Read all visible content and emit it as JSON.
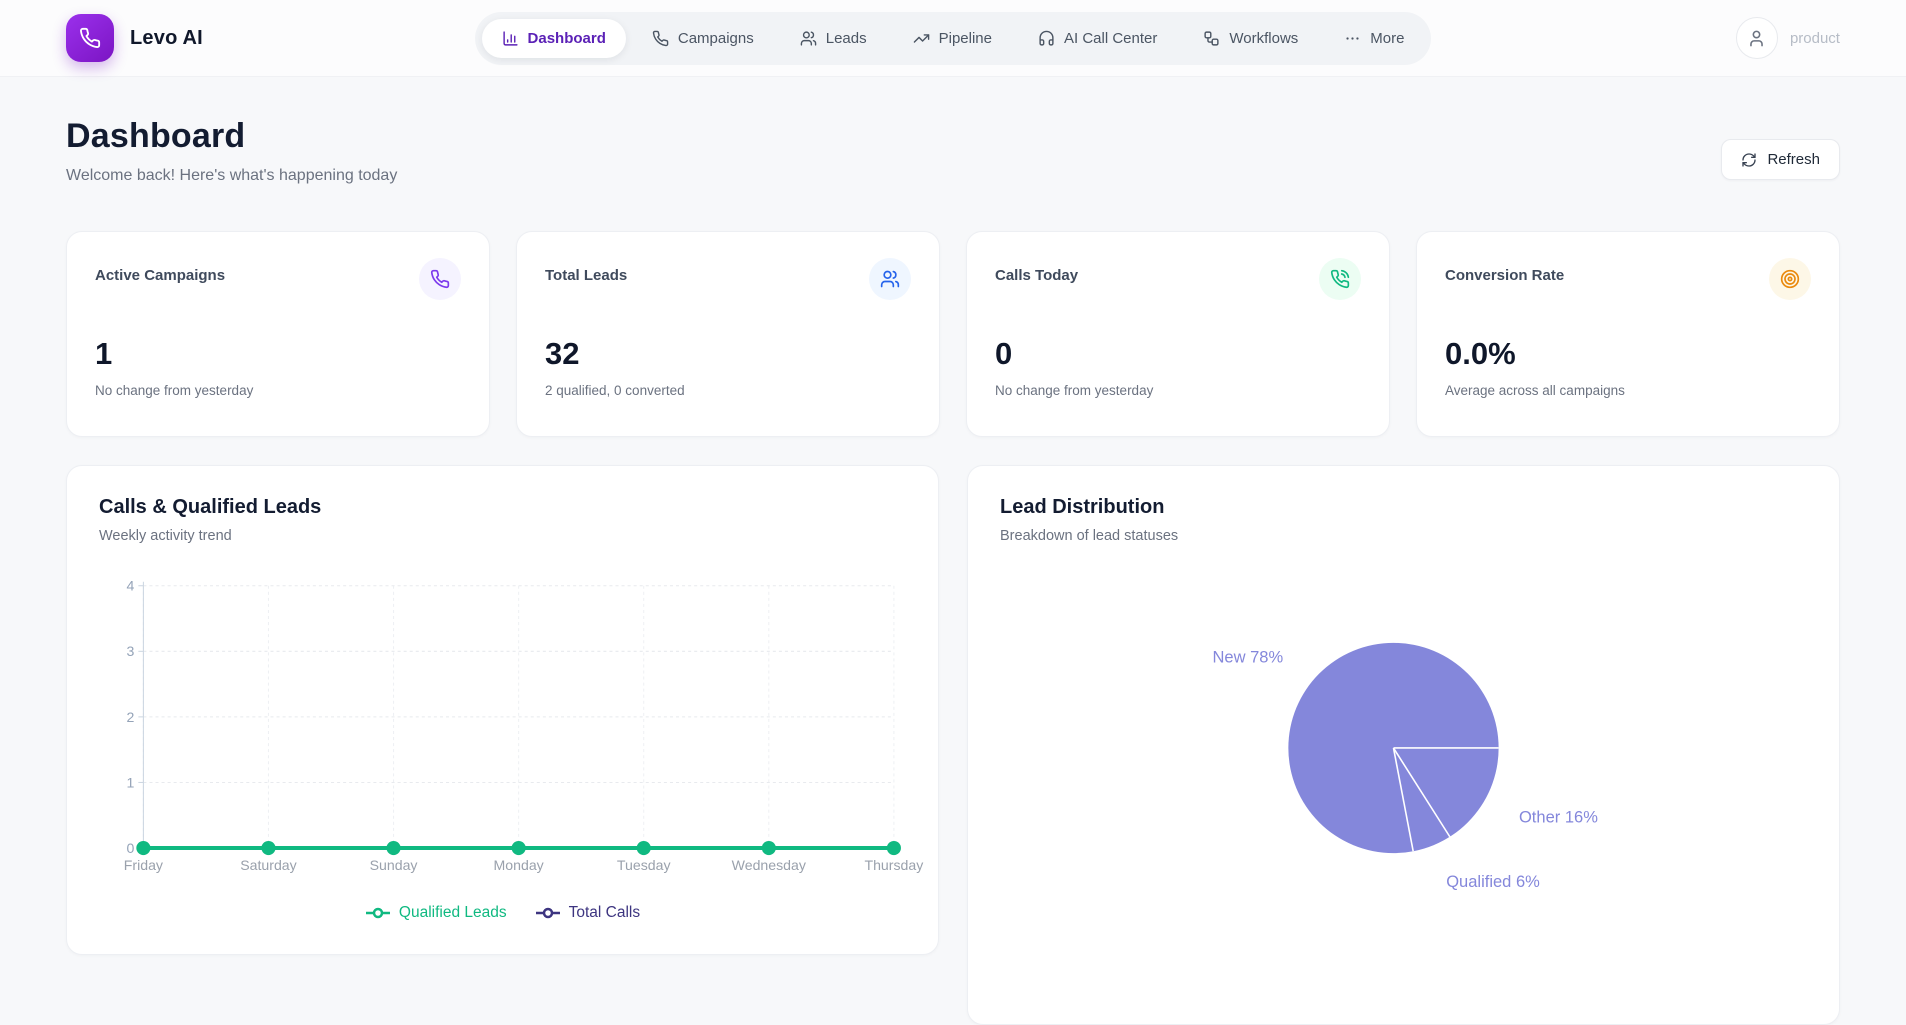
{
  "brand": {
    "name": "Levo AI",
    "logo_icon": "phone-icon"
  },
  "nav": {
    "items": [
      {
        "label": "Dashboard",
        "icon": "chart-column-icon",
        "active": true
      },
      {
        "label": "Campaigns",
        "icon": "phone-icon",
        "active": false
      },
      {
        "label": "Leads",
        "icon": "users-icon",
        "active": false
      },
      {
        "label": "Pipeline",
        "icon": "trending-up-icon",
        "active": false
      },
      {
        "label": "AI Call Center",
        "icon": "headphones-icon",
        "active": false
      },
      {
        "label": "Workflows",
        "icon": "workflow-icon",
        "active": false
      },
      {
        "label": "More",
        "icon": "ellipsis-icon",
        "active": false
      }
    ]
  },
  "user": {
    "name": "product",
    "icon": "user-icon"
  },
  "page": {
    "title": "Dashboard",
    "subtitle": "Welcome back! Here's what's happening today",
    "refresh_label": "Refresh"
  },
  "theme": {
    "accent_purple": "#5b21b6",
    "background": "#f7f8fa",
    "card_border": "#edeff3"
  },
  "stats": [
    {
      "title": "Active Campaigns",
      "value": "1",
      "subtitle": "No change from yesterday",
      "icon": "phone-icon",
      "icon_color": "#7c3aed",
      "chip_bg": "#f5f3ff"
    },
    {
      "title": "Total Leads",
      "value": "32",
      "subtitle": "2 qualified, 0 converted",
      "icon": "users-icon",
      "icon_color": "#2563eb",
      "chip_bg": "#eff6ff"
    },
    {
      "title": "Calls Today",
      "value": "0",
      "subtitle": "No change from yesterday",
      "icon": "phone-call-icon",
      "icon_color": "#10b981",
      "chip_bg": "#ecfdf3"
    },
    {
      "title": "Conversion Rate",
      "value": "0.0%",
      "subtitle": "Average across all campaigns",
      "icon": "target-icon",
      "icon_color": "#ea8a0e",
      "chip_bg": "#fdf7e7"
    }
  ],
  "chart_data": [
    {
      "type": "line",
      "title": "Calls & Qualified Leads",
      "subtitle": "Weekly activity trend",
      "categories": [
        "Friday",
        "Saturday",
        "Sunday",
        "Monday",
        "Tuesday",
        "Wednesday",
        "Thursday"
      ],
      "series": [
        {
          "name": "Qualified Leads",
          "color": "#10b981",
          "values": [
            0,
            0,
            0,
            0,
            0,
            0,
            0
          ]
        },
        {
          "name": "Total Calls",
          "color": "#3d3580",
          "values": [
            0,
            0,
            0,
            0,
            0,
            0,
            0
          ]
        }
      ],
      "ylim": [
        0,
        4
      ],
      "yticks": [
        0,
        1,
        2,
        3,
        4
      ],
      "grid": true,
      "legend_position": "bottom"
    },
    {
      "type": "pie",
      "title": "Lead Distribution",
      "subtitle": "Breakdown of lead statuses",
      "slices": [
        {
          "label": "New",
          "pct": 78
        },
        {
          "label": "Qualified",
          "pct": 6
        },
        {
          "label": "Other",
          "pct": 16
        }
      ],
      "color": "#8487db",
      "label_format": "{label} {pct}%",
      "start_angle_deg": 0,
      "direction": "counterclockwise"
    }
  ]
}
